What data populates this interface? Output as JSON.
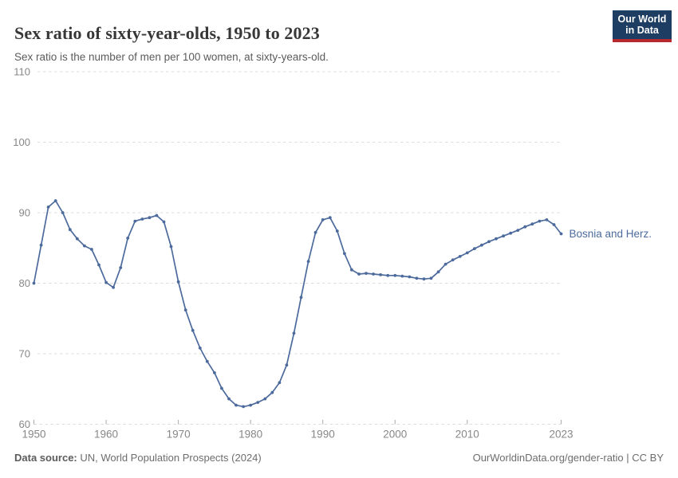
{
  "header": {
    "title": "Sex ratio of sixty-year-olds, 1950 to 2023",
    "subtitle": "Sex ratio is the number of men per 100 women, at sixty-years-old.",
    "logo": {
      "line1": "Our World",
      "line2": "in Data",
      "bg_color": "#1d3d63",
      "accent_color": "#b5292f"
    }
  },
  "footer": {
    "source_label": "Data source:",
    "source_text": " UN, World Population Prospects (2024)",
    "credit_text": "OurWorldinData.org/gender-ratio | CC BY"
  },
  "chart_data": {
    "type": "line",
    "title": "Sex ratio of sixty-year-olds, 1950 to 2023",
    "subtitle": "Sex ratio is the number of men per 100 women, at sixty-years-old.",
    "xlabel": "",
    "ylabel": "",
    "xlim": [
      1950,
      2023
    ],
    "ylim": [
      60,
      110
    ],
    "x_ticks": [
      1950,
      1960,
      1970,
      1980,
      1990,
      2000,
      2010,
      2023
    ],
    "y_ticks": [
      60,
      70,
      80,
      90,
      100,
      110
    ],
    "grid": "horizontal-dashed",
    "legend": "end-of-line-label",
    "marker": "circle",
    "colors": {
      "line": "#4C6A9C",
      "grid": "#dddddd",
      "tick_label": "#878787",
      "tick_mark": "#aaaaaa"
    },
    "series": [
      {
        "name": "Bosnia and Herz.",
        "color": "#4C6A9C",
        "x": [
          1950,
          1951,
          1952,
          1953,
          1954,
          1955,
          1956,
          1957,
          1958,
          1959,
          1960,
          1961,
          1962,
          1963,
          1964,
          1965,
          1966,
          1967,
          1968,
          1969,
          1970,
          1971,
          1972,
          1973,
          1974,
          1975,
          1976,
          1977,
          1978,
          1979,
          1980,
          1981,
          1982,
          1983,
          1984,
          1985,
          1986,
          1987,
          1988,
          1989,
          1990,
          1991,
          1992,
          1993,
          1994,
          1995,
          1996,
          1997,
          1998,
          1999,
          2000,
          2001,
          2002,
          2003,
          2004,
          2005,
          2006,
          2007,
          2008,
          2009,
          2010,
          2011,
          2012,
          2013,
          2014,
          2015,
          2016,
          2017,
          2018,
          2019,
          2020,
          2021,
          2022,
          2023
        ],
        "values": [
          80.0,
          85.4,
          90.8,
          91.7,
          90.0,
          87.6,
          86.3,
          85.3,
          84.8,
          82.6,
          80.1,
          79.4,
          82.2,
          86.4,
          88.8,
          89.1,
          89.3,
          89.6,
          88.7,
          85.2,
          80.2,
          76.2,
          73.3,
          70.8,
          68.9,
          67.3,
          65.1,
          63.6,
          62.7,
          62.5,
          62.7,
          63.1,
          63.6,
          64.5,
          65.9,
          68.4,
          72.9,
          78.0,
          83.1,
          87.2,
          89.0,
          89.3,
          87.4,
          84.2,
          81.9,
          81.3,
          81.4,
          81.3,
          81.2,
          81.1,
          81.1,
          81.0,
          80.9,
          80.7,
          80.6,
          80.7,
          81.6,
          82.7,
          83.3,
          83.8,
          84.3,
          84.9,
          85.4,
          85.9,
          86.3,
          86.7,
          87.1,
          87.5,
          88.0,
          88.4,
          88.8,
          89.0,
          88.3,
          87.0
        ]
      }
    ]
  }
}
